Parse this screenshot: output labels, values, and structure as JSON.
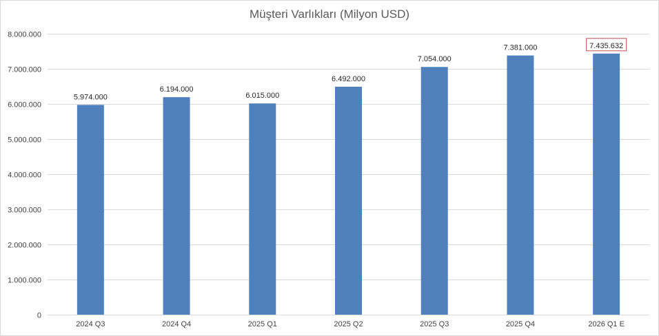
{
  "chart_data": {
    "type": "bar",
    "title": "Müşteri Varlıkları (Milyon USD)",
    "xlabel": "",
    "ylabel": "",
    "categories": [
      "2024 Q3",
      "2024 Q4",
      "2025 Q1",
      "2025 Q2",
      "2025 Q3",
      "2025 Q4",
      "2026 Q1 E"
    ],
    "values": [
      5974000,
      6194000,
      6015000,
      6492000,
      7054000,
      7381000,
      7435632
    ],
    "data_labels": [
      "5.974.000",
      "6.194.000",
      "6.015.000",
      "6.492.000",
      "7.054.000",
      "7.381.000",
      "7.435.632"
    ],
    "highlighted_label_index": 6,
    "ylim": [
      0,
      8000000
    ],
    "yticks": [
      0,
      1000000,
      2000000,
      3000000,
      4000000,
      5000000,
      6000000,
      7000000,
      8000000
    ],
    "ytick_labels": [
      "0",
      "1.000.000",
      "2.000.000",
      "3.000.000",
      "4.000.000",
      "5.000.000",
      "6.000.000",
      "7.000.000",
      "8.000.000"
    ],
    "grid": true,
    "legend": "none",
    "colors": {
      "bar": "#4f81bd",
      "gridline": "#d9d9d9",
      "highlight_border": "#c0504d"
    }
  }
}
